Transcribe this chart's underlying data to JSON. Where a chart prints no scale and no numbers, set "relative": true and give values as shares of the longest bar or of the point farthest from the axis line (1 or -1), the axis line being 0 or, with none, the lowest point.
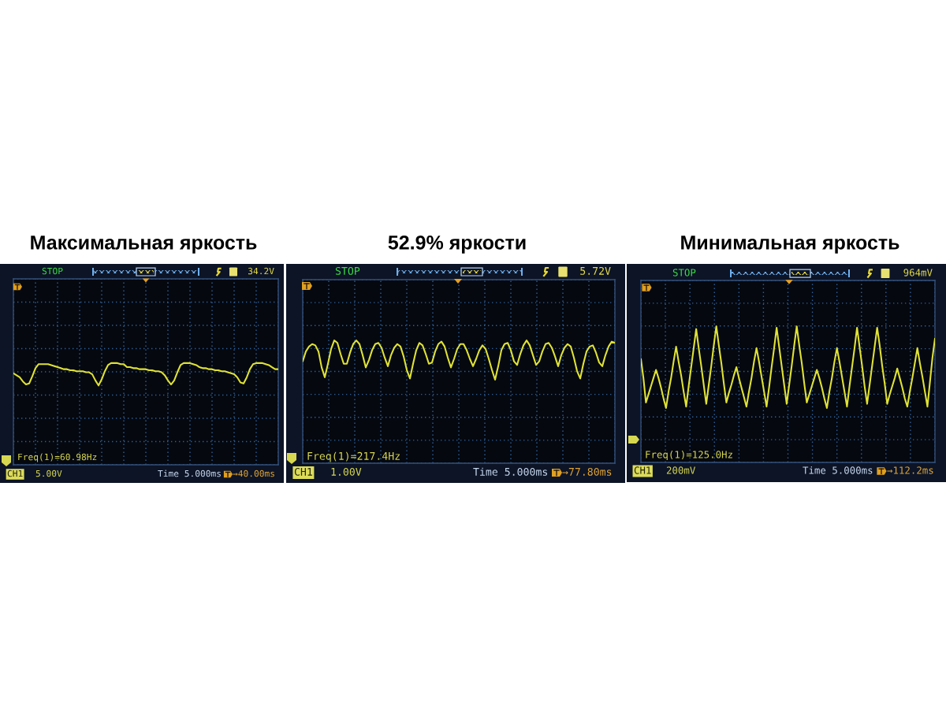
{
  "chart_data": [
    {
      "type": "line",
      "title": "Максимальная яркость",
      "relative": true,
      "grid": true,
      "color": "#dfe235",
      "categories": [
        null,
        null,
        null,
        null,
        null,
        null,
        null,
        null,
        null,
        null,
        null,
        null,
        null,
        null,
        null,
        null,
        null,
        null,
        null,
        null,
        null,
        null,
        null,
        null,
        null,
        null,
        null,
        null,
        null,
        null,
        null,
        null,
        null,
        null,
        null,
        null,
        null,
        null,
        null,
        null,
        null,
        null,
        null,
        null,
        null,
        null,
        null,
        null,
        null,
        null,
        null,
        null,
        null,
        null,
        null,
        null,
        null,
        null,
        null,
        null,
        null,
        null,
        null,
        null,
        null,
        null,
        null,
        null,
        null,
        null,
        null,
        null,
        null,
        null,
        null,
        null,
        null,
        null,
        null,
        null,
        null,
        null,
        null,
        null,
        null
      ],
      "values": [
        0.9,
        0.88,
        0.86,
        0.82,
        0.79,
        0.8,
        0.87,
        0.95,
        0.99,
        0.99,
        0.99,
        0.99,
        0.98,
        0.97,
        0.96,
        0.95,
        0.94,
        0.94,
        0.93,
        0.93,
        0.92,
        0.92,
        0.92,
        0.91,
        0.91,
        0.89,
        0.83,
        0.78,
        0.84,
        0.92,
        0.98,
        1.0,
        1.0,
        1.0,
        0.99,
        0.99,
        0.96,
        0.96,
        0.95,
        0.95,
        0.94,
        0.94,
        0.94,
        0.93,
        0.93,
        0.92,
        0.92,
        0.91,
        0.88,
        0.83,
        0.79,
        0.83,
        0.91,
        0.98,
        1.0,
        1.0,
        1.0,
        0.99,
        0.98,
        0.96,
        0.95,
        0.95,
        0.94,
        0.94,
        0.93,
        0.93,
        0.92,
        0.92,
        0.91,
        0.9,
        0.89,
        0.86,
        0.81,
        0.8,
        0.86,
        0.94,
        0.99,
        1.0,
        1.0,
        1.0,
        0.99,
        0.98,
        0.96,
        0.94,
        0.94
      ],
      "annotations": [
        "STOP",
        "34.2V",
        "Freq(1)=60.98Hz",
        "CH1",
        "5.00V",
        "Time 5.000ms",
        "→40.00ms"
      ]
    },
    {
      "type": "line",
      "title": "52.9% яркости",
      "relative": true,
      "grid": true,
      "color": "#dfe235",
      "categories": [
        null,
        null,
        null,
        null,
        null,
        null,
        null,
        null,
        null,
        null,
        null,
        null,
        null,
        null,
        null,
        null,
        null,
        null,
        null,
        null,
        null,
        null,
        null,
        null,
        null,
        null,
        null,
        null,
        null,
        null,
        null,
        null,
        null,
        null,
        null,
        null,
        null,
        null,
        null,
        null,
        null,
        null,
        null,
        null,
        null,
        null,
        null,
        null,
        null,
        null,
        null,
        null,
        null,
        null,
        null,
        null,
        null,
        null,
        null,
        null,
        null,
        null,
        null,
        null,
        null,
        null,
        null,
        null,
        null,
        null,
        null,
        null,
        null,
        null,
        null,
        null,
        null,
        null,
        null,
        null,
        null,
        null,
        null,
        null,
        null,
        null,
        null,
        null,
        null,
        null,
        null,
        null,
        null,
        null,
        null,
        null,
        null,
        null,
        null,
        null
      ],
      "values": [
        0.83,
        0.91,
        0.95,
        0.97,
        0.96,
        0.91,
        0.78,
        0.7,
        0.81,
        0.93,
        1.0,
        0.98,
        0.89,
        0.81,
        0.81,
        0.9,
        0.97,
        1.0,
        0.97,
        0.88,
        0.78,
        0.84,
        0.92,
        0.97,
        0.98,
        0.94,
        0.86,
        0.79,
        0.88,
        0.94,
        0.97,
        0.95,
        0.87,
        0.76,
        0.69,
        0.81,
        0.92,
        0.98,
        0.96,
        0.89,
        0.81,
        0.82,
        0.91,
        0.97,
        0.99,
        0.95,
        0.86,
        0.78,
        0.85,
        0.93,
        0.97,
        0.97,
        0.92,
        0.85,
        0.79,
        0.85,
        0.92,
        0.96,
        0.93,
        0.85,
        0.76,
        0.68,
        0.79,
        0.92,
        0.97,
        0.98,
        0.92,
        0.83,
        0.8,
        0.89,
        0.96,
        1.0,
        0.96,
        0.88,
        0.8,
        0.83,
        0.91,
        0.97,
        0.98,
        0.94,
        0.87,
        0.79,
        0.88,
        0.94,
        0.97,
        0.95,
        0.86,
        0.75,
        0.69,
        0.81,
        0.91,
        0.95,
        0.96,
        0.9,
        0.82,
        0.79,
        0.88,
        0.95,
        0.99,
        0.98
      ],
      "annotations": [
        "STOP",
        "5.72V",
        "Freq(1)=217.4Hz",
        "CH1",
        "1.00V",
        "Time 5.000ms",
        "→77.80ms"
      ]
    },
    {
      "type": "line",
      "title": "Минимальная яркость",
      "relative": true,
      "grid": true,
      "color": "#dfe235",
      "categories": [
        null,
        null,
        null,
        null,
        null,
        null,
        null,
        null,
        null,
        null,
        null,
        null,
        null,
        null,
        null,
        null,
        null,
        null,
        null,
        null,
        null,
        null,
        null,
        null,
        null,
        null,
        null,
        null,
        null,
        null,
        null,
        null,
        null,
        null,
        null,
        null,
        null,
        null,
        null,
        null,
        null,
        null,
        null,
        null,
        null,
        null,
        null,
        null,
        null,
        null,
        null,
        null,
        null,
        null,
        null,
        null,
        null,
        null,
        null,
        null,
        null,
        null,
        null,
        null,
        null,
        null,
        null,
        null,
        null,
        null,
        null,
        null,
        null,
        null,
        null,
        null,
        null,
        null,
        null,
        null,
        null,
        null,
        null,
        null,
        null,
        null,
        null,
        null,
        null,
        null,
        null,
        null,
        null,
        null,
        null,
        null,
        null,
        null,
        null,
        null,
        null,
        null,
        null,
        null,
        null,
        null,
        null,
        null,
        null,
        null,
        null,
        null,
        null,
        null,
        null,
        null,
        null,
        null
      ],
      "values": [
        0.76,
        0.62,
        0.44,
        0.5,
        0.56,
        0.62,
        0.68,
        0.62,
        0.55,
        0.47,
        0.4,
        0.52,
        0.62,
        0.74,
        0.85,
        0.74,
        0.64,
        0.52,
        0.41,
        0.56,
        0.7,
        0.84,
        0.98,
        0.84,
        0.71,
        0.57,
        0.43,
        0.57,
        0.71,
        0.86,
        1.0,
        0.86,
        0.73,
        0.58,
        0.44,
        0.51,
        0.57,
        0.64,
        0.7,
        0.62,
        0.55,
        0.48,
        0.41,
        0.52,
        0.62,
        0.74,
        0.84,
        0.74,
        0.63,
        0.52,
        0.41,
        0.55,
        0.7,
        0.84,
        0.99,
        0.85,
        0.71,
        0.57,
        0.43,
        0.57,
        0.71,
        0.86,
        1.0,
        0.86,
        0.73,
        0.58,
        0.44,
        0.5,
        0.56,
        0.62,
        0.68,
        0.62,
        0.55,
        0.47,
        0.4,
        0.52,
        0.62,
        0.74,
        0.84,
        0.74,
        0.63,
        0.52,
        0.41,
        0.56,
        0.7,
        0.84,
        0.99,
        0.85,
        0.71,
        0.56,
        0.43,
        0.57,
        0.71,
        0.85,
        0.99,
        0.86,
        0.71,
        0.58,
        0.43,
        0.5,
        0.56,
        0.62,
        0.69,
        0.62,
        0.55,
        0.47,
        0.41,
        0.52,
        0.62,
        0.73,
        0.84,
        0.73,
        0.63,
        0.52,
        0.41,
        0.59,
        0.77,
        0.91
      ],
      "annotations": [
        "STOP",
        "964mV",
        "Freq(1)=125.0Hz",
        "CH1",
        "200mV",
        "Time 5.000ms",
        "→112.2ms"
      ]
    }
  ]
}
